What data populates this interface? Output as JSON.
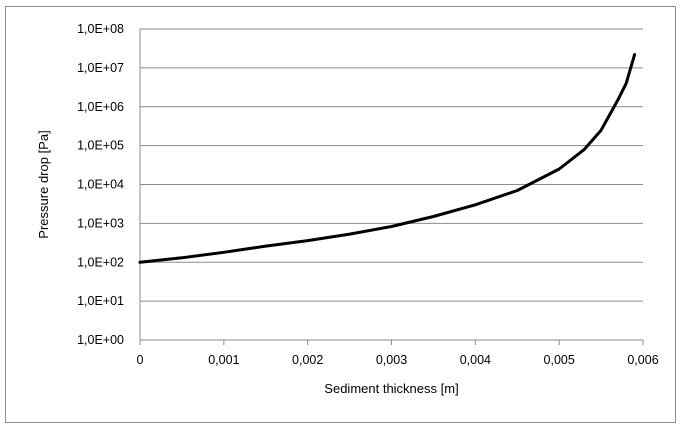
{
  "chart_data": {
    "type": "line",
    "title": "",
    "xlabel": "Sediment thickness [m]",
    "ylabel": "Pressure drop [Pa]",
    "y_scale": "log",
    "xlim": [
      0,
      0.006
    ],
    "ylim": [
      1,
      100000000
    ],
    "grid": "horizontal",
    "legend": "none",
    "x_tick_labels": [
      "0",
      "0,001",
      "0,002",
      "0,003",
      "0,004",
      "0,005",
      "0,006"
    ],
    "y_tick_labels": [
      "1,0E+00",
      "1,0E+01",
      "1,0E+02",
      "1,0E+03",
      "1,0E+04",
      "1,0E+05",
      "1,0E+06",
      "1,0E+07",
      "1,0E+08"
    ],
    "line_color": "#000000",
    "series": [
      {
        "x": [
          0,
          0.0005,
          0.001,
          0.0015,
          0.002,
          0.0025,
          0.003,
          0.0035,
          0.004,
          0.0045,
          0.005,
          0.0053,
          0.0055,
          0.0057,
          0.0058,
          0.0059
        ],
        "y": [
          100,
          130,
          180,
          260,
          360,
          530,
          830,
          1500,
          3000,
          7000,
          25000,
          80000,
          250000,
          1500000,
          4000000,
          22000000
        ]
      }
    ]
  }
}
